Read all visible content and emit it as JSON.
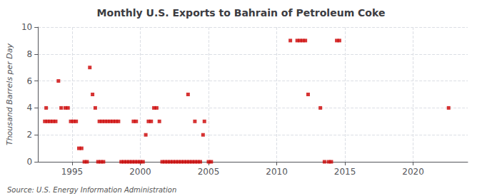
{
  "chart_data": {
    "type": "scatter",
    "title": "Monthly U.S. Exports to Bahrain of Petroleum Coke",
    "ylabel": "Thousand Barrels per Day",
    "annotations": [
      "Source: U.S. Energy Information Administration"
    ],
    "x": [
      1993.0,
      1993.2,
      1993.4,
      1993.6,
      1993.8,
      1993.1,
      1994.0,
      1994.2,
      1994.5,
      1994.7,
      1994.9,
      1995.1,
      1995.3,
      1995.5,
      1995.7,
      1995.9,
      1996.1,
      1996.3,
      1996.5,
      1996.7,
      1997.0,
      1997.2,
      1997.4,
      1997.6,
      1997.8,
      1998.0,
      1998.2,
      1998.4,
      1996.9,
      1997.1,
      1997.3,
      1998.6,
      1998.8,
      1999.0,
      1999.2,
      1999.4,
      1999.6,
      1999.8,
      2000.0,
      2000.2,
      1999.5,
      1999.7,
      2000.4,
      2000.6,
      2000.8,
      2001.0,
      2001.2,
      2001.4,
      2001.6,
      2001.8,
      2002.0,
      2002.2,
      2002.4,
      2002.6,
      2002.8,
      2003.0,
      2003.2,
      2003.4,
      2003.6,
      2003.8,
      2004.0,
      2004.2,
      2004.4,
      2003.5,
      2004.0,
      2004.6,
      2004.7,
      2005.0,
      2005.2,
      2011.0,
      2011.5,
      2011.7,
      2011.9,
      2012.1,
      2012.3,
      2013.2,
      2013.5,
      2013.8,
      2014.0,
      2014.4,
      2014.6,
      2022.6
    ],
    "values": [
      3,
      3,
      3,
      3,
      3,
      4,
      6,
      4,
      4,
      4,
      3,
      3,
      3,
      1,
      1,
      0,
      0,
      7,
      5,
      4,
      3,
      3,
      3,
      3,
      3,
      3,
      3,
      3,
      0,
      0,
      0,
      0,
      0,
      0,
      0,
      0,
      0,
      0,
      0,
      0,
      3,
      3,
      2,
      3,
      3,
      4,
      4,
      3,
      0,
      0,
      0,
      0,
      0,
      0,
      0,
      0,
      0,
      0,
      0,
      0,
      0,
      0,
      0,
      5,
      3,
      2,
      3,
      0,
      0,
      9,
      9,
      9,
      9,
      9,
      5,
      4,
      0,
      0,
      0,
      9,
      9,
      4
    ],
    "color": "#cc0000",
    "marker": "square",
    "xlim": [
      1992.5,
      2024
    ],
    "xticks": [
      1995,
      2000,
      2005,
      2010,
      2015,
      2020
    ],
    "ylim": [
      0,
      10
    ],
    "yticks": [
      0,
      2,
      4,
      6,
      8,
      10
    ],
    "grid": true
  }
}
